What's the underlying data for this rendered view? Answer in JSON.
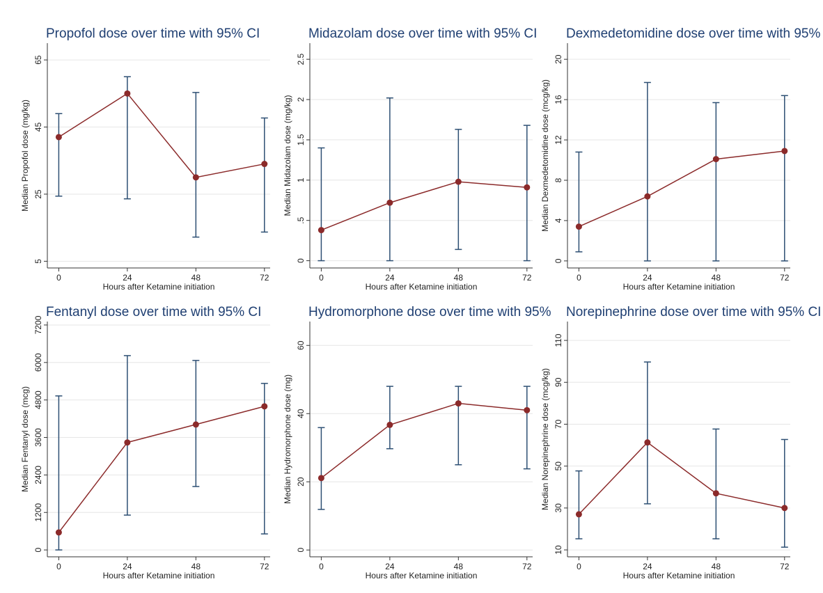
{
  "chart_data": [
    {
      "type": "line",
      "title": "Propofol dose over time with 95% CI",
      "x_label": "Hours after Ketamine initiation",
      "y_label": "Median Propofol dose (mg/kg)",
      "x": [
        0,
        24,
        48,
        72
      ],
      "values": [
        42,
        55,
        30,
        34
      ],
      "lower": [
        24.4,
        23.6,
        12.2,
        13.7
      ],
      "upper": [
        49,
        60,
        55.3,
        47.7
      ],
      "color": "#8b2a2a",
      "error_color": "#2d4f73",
      "xlim": [
        -4,
        74
      ],
      "xticks": [
        0,
        24,
        48,
        72
      ],
      "ylim": [
        3,
        70
      ],
      "yticks": [
        5,
        25,
        45,
        65
      ],
      "grid": true
    },
    {
      "type": "line",
      "title": "Midazolam dose over time with 95% CI",
      "x_label": "Hours after Ketamine initiation",
      "y_label": "Median Midazolam dose (mg/kg)",
      "x": [
        0,
        24,
        48,
        72
      ],
      "values": [
        0.38,
        0.72,
        0.98,
        0.91
      ],
      "lower": [
        0,
        0,
        0.14,
        0
      ],
      "upper": [
        1.4,
        2.02,
        1.63,
        1.68
      ],
      "color": "#8b2a2a",
      "error_color": "#2d4f73",
      "xlim": [
        -4,
        74
      ],
      "xticks": [
        0,
        24,
        48,
        72
      ],
      "ylim": [
        -0.09,
        2.7
      ],
      "yticks": [
        0,
        {
          "value": 0.5,
          "label": ".5"
        },
        1,
        1.5,
        2,
        2.5
      ],
      "grid": true
    },
    {
      "type": "line",
      "title": "Dexmedetomidine dose over time with 95% C",
      "x_label": "Hours after Ketamine initiation",
      "y_label": "Median Dexmedetomidine dose (mcg/kg)",
      "x": [
        0,
        24,
        48,
        72
      ],
      "values": [
        3.4,
        6.4,
        10.1,
        10.9
      ],
      "lower": [
        0.9,
        0,
        0,
        0
      ],
      "upper": [
        10.8,
        17.7,
        15.7,
        16.4
      ],
      "color": "#8b2a2a",
      "error_color": "#2d4f73",
      "xlim": [
        -4,
        74
      ],
      "xticks": [
        0,
        24,
        48,
        72
      ],
      "ylim": [
        -0.7,
        21.6
      ],
      "yticks": [
        0,
        4,
        8,
        12,
        16,
        20
      ],
      "grid": true
    },
    {
      "type": "line",
      "title": "Fentanyl dose over time with 95% CI",
      "x_label": "Hours after Ketamine initiation",
      "y_label": "Median Fentanyl dose (mcg)",
      "x": [
        0,
        24,
        48,
        72
      ],
      "values": [
        560,
        3440,
        4015,
        4595
      ],
      "lower": [
        0,
        1115,
        2030,
        513
      ],
      "upper": [
        4930,
        6220,
        6065,
        5330
      ],
      "color": "#8b2a2a",
      "error_color": "#2d4f73",
      "xlim": [
        -4,
        74
      ],
      "xticks": [
        0,
        24,
        48,
        72
      ],
      "ylim": [
        -220,
        7310
      ],
      "yticks": [
        0,
        1200,
        2400,
        3600,
        4800,
        6000,
        7200
      ],
      "grid": true
    },
    {
      "type": "line",
      "title": "Hydromorphone dose over time with 95%",
      "x_label": "Hours after Ketamine initiation",
      "y_label": "Median Hydromorphone dose (mg)",
      "x": [
        0,
        24,
        48,
        72
      ],
      "values": [
        21.1,
        36.7,
        43,
        41
      ],
      "lower": [
        11.9,
        29.7,
        25,
        23.8
      ],
      "upper": [
        35.9,
        48,
        48,
        48
      ],
      "color": "#8b2a2a",
      "error_color": "#2d4f73",
      "xlim": [
        -4,
        74
      ],
      "xticks": [
        0,
        24,
        48,
        72
      ],
      "ylim": [
        -2,
        67
      ],
      "yticks": [
        0,
        20,
        40,
        60
      ],
      "grid": true
    },
    {
      "type": "line",
      "title": "Norepinephrine dose over time with 95% CI",
      "x_label": "Hours after Ketamine initiation",
      "y_label": "Median Norepinephrine dose (mcg/kg)",
      "x": [
        0,
        24,
        48,
        72
      ],
      "values": [
        27,
        61.3,
        37,
        30
      ],
      "lower": [
        15.3,
        32,
        15.3,
        11.3
      ],
      "upper": [
        47.7,
        99.7,
        67.7,
        62.7
      ],
      "color": "#8b2a2a",
      "error_color": "#2d4f73",
      "xlim": [
        -4,
        74
      ],
      "xticks": [
        0,
        24,
        48,
        72
      ],
      "ylim": [
        6.7,
        119
      ],
      "yticks": [
        10,
        30,
        50,
        70,
        90,
        110
      ],
      "grid": true
    }
  ]
}
